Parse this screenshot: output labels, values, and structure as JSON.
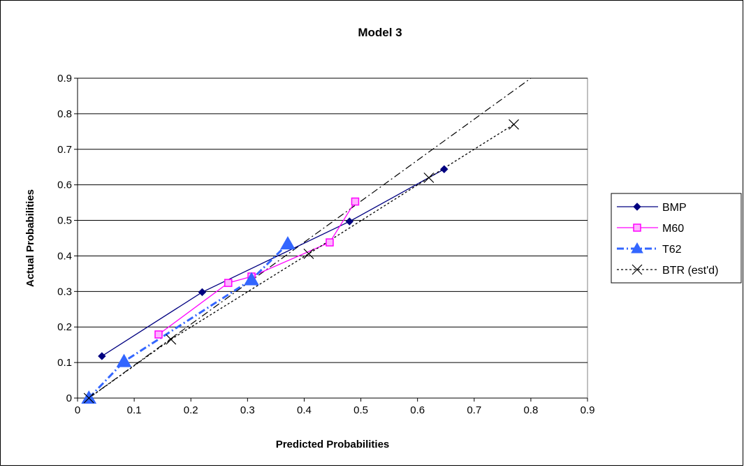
{
  "chart_data": {
    "type": "line",
    "title": "Model 3",
    "xlabel": "Predicted Probabilities",
    "ylabel": "Actual Probabilities",
    "xlim": [
      0,
      0.9
    ],
    "ylim": [
      0,
      0.9
    ],
    "x_ticks": [
      "0",
      "0.1",
      "0.2",
      "0.3",
      "0.4",
      "0.5",
      "0.6",
      "0.7",
      "0.8",
      "0.9"
    ],
    "y_ticks": [
      "0",
      "0.1",
      "0.2",
      "0.3",
      "0.4",
      "0.5",
      "0.6",
      "0.7",
      "0.8",
      "0.9"
    ],
    "grid": "horizontal",
    "legend_position": "right",
    "series": [
      {
        "name": "BMP",
        "color": "#000080",
        "marker": "diamond",
        "dash": "solid",
        "points": [
          [
            0.043,
            0.118
          ],
          [
            0.22,
            0.298
          ],
          [
            0.48,
            0.497
          ],
          [
            0.647,
            0.644
          ]
        ]
      },
      {
        "name": "M60",
        "color": "#ff00ff",
        "marker": "square",
        "dash": "solid",
        "points": [
          [
            0.143,
            0.179
          ],
          [
            0.266,
            0.324
          ],
          [
            0.307,
            0.342
          ],
          [
            0.445,
            0.438
          ],
          [
            0.49,
            0.553
          ]
        ]
      },
      {
        "name": "T62",
        "color": "#3366ff",
        "marker": "triangle",
        "dash": "dashdot",
        "points": [
          [
            0.02,
            0.0
          ],
          [
            0.082,
            0.103
          ],
          [
            0.307,
            0.333
          ],
          [
            0.371,
            0.434
          ]
        ]
      },
      {
        "name": "BTR (est'd)",
        "color": "#000000",
        "marker": "x",
        "dash": "dotted",
        "points": [
          [
            0.02,
            0.0
          ],
          [
            0.165,
            0.165
          ],
          [
            0.408,
            0.406
          ],
          [
            0.62,
            0.62
          ],
          [
            0.77,
            0.77
          ]
        ]
      }
    ],
    "reference_lines": [
      {
        "color": "#000000",
        "dash": "dashdot",
        "points": [
          [
            0.02,
            0.0
          ],
          [
            0.8,
            0.9
          ]
        ]
      }
    ]
  }
}
